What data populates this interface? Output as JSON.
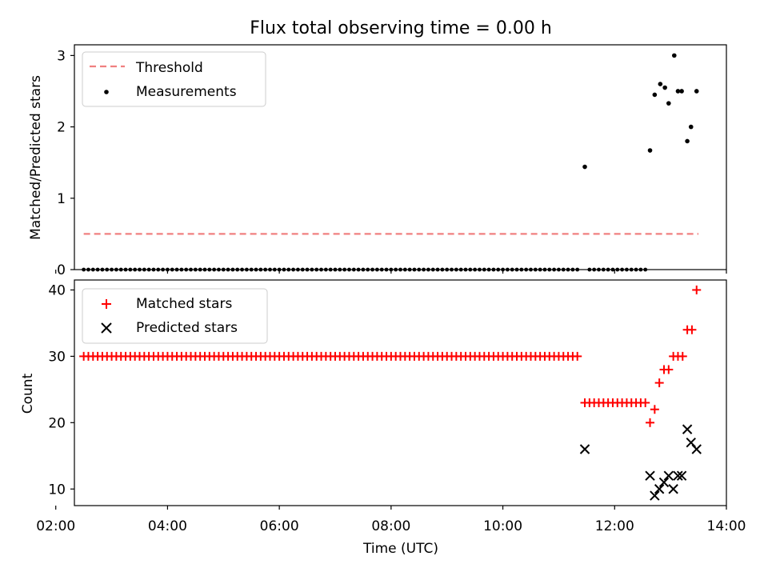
{
  "chart_data": [
    {
      "type": "scatter",
      "title": "Flux total observing time = 0.00 h",
      "xlabel": "",
      "ylabel": "Matched/Predicted stars",
      "xlim": [
        "02:20",
        "14:00"
      ],
      "ylim": [
        0,
        3.15
      ],
      "yticks": [
        "0",
        "1",
        "2",
        "3"
      ],
      "legend": {
        "placement": "top-left",
        "entries": [
          "Threshold",
          "Measurements"
        ]
      },
      "series": [
        {
          "name": "Threshold",
          "kind": "dashed-line",
          "color": "#f08080",
          "x": [
            "02:30",
            "13:30"
          ],
          "y": [
            0.5,
            0.5
          ]
        },
        {
          "name": "Measurements",
          "kind": "dots",
          "color": "#000000",
          "x": [
            "11:28",
            "12:38",
            "12:43",
            "12:49",
            "12:54",
            "12:58",
            "13:04",
            "13:08",
            "13:12",
            "13:18",
            "13:22",
            "13:28"
          ],
          "y": [
            1.44,
            1.67,
            2.45,
            2.6,
            2.55,
            2.33,
            3.0,
            2.5,
            2.5,
            1.8,
            2.0,
            2.5
          ]
        },
        {
          "name": "Zero measurements",
          "kind": "dots",
          "color": "#000000",
          "ranges": [
            {
              "from": "02:30",
              "to": "11:24",
              "step_min": 5,
              "y": 0
            },
            {
              "from": "11:33",
              "to": "12:34",
              "step_min": 5,
              "y": 0
            }
          ]
        }
      ]
    },
    {
      "type": "scatter",
      "title": "",
      "xlabel": "Time (UTC)",
      "ylabel": "Count",
      "xlim": [
        "02:20",
        "14:00"
      ],
      "ylim": [
        7.5,
        41.5
      ],
      "yticks": [
        "10",
        "20",
        "30",
        "40"
      ],
      "xticks": [
        "02:00",
        "04:00",
        "06:00",
        "08:00",
        "10:00",
        "12:00",
        "14:00"
      ],
      "legend": {
        "placement": "top-left",
        "entries": [
          "Matched stars",
          "Predicted stars"
        ]
      },
      "series": [
        {
          "name": "Matched stars",
          "marker": "plus",
          "color": "#ff0000",
          "ranges": [
            {
              "from": "02:30",
              "to": "11:24",
              "step_min": 5,
              "y": 30
            },
            {
              "from": "11:28",
              "to": "12:34",
              "step_min": 5,
              "y": 23
            }
          ],
          "x": [
            "12:38",
            "12:43",
            "12:48",
            "12:53",
            "12:58",
            "13:03",
            "13:08",
            "13:13",
            "13:18",
            "13:23",
            "13:28"
          ],
          "y": [
            20,
            22,
            26,
            28,
            28,
            30,
            30,
            30,
            34,
            34,
            40
          ]
        },
        {
          "name": "Predicted stars",
          "marker": "x",
          "color": "#000000",
          "x": [
            "11:28",
            "12:38",
            "12:43",
            "12:48",
            "12:53",
            "12:58",
            "13:03",
            "13:08",
            "13:12",
            "13:18",
            "13:22",
            "13:28"
          ],
          "y": [
            16,
            12,
            9,
            10,
            11,
            12,
            10,
            12,
            12,
            19,
            17,
            16
          ]
        }
      ]
    }
  ]
}
